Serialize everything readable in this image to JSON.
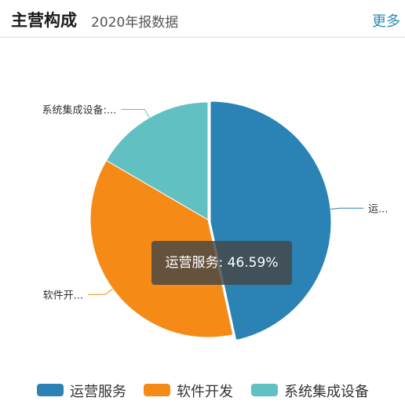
{
  "header": {
    "title": "主营构成",
    "subtitle": "2020年报数据",
    "more_label": "更多"
  },
  "tooltip": "运营服务: 46.59%",
  "chart_data": {
    "type": "pie",
    "slices": [
      {
        "name": "运营服务",
        "value": 46.59,
        "color": "#2a83b4",
        "callout": "运..."
      },
      {
        "name": "软件开发",
        "value": 36.81,
        "color": "#f58b16",
        "callout": "软件开..."
      },
      {
        "name": "系统集成设备",
        "value": 16.6,
        "color": "#61c0c1",
        "callout": "系统集成设备:..."
      }
    ],
    "legend_position": "bottom"
  }
}
